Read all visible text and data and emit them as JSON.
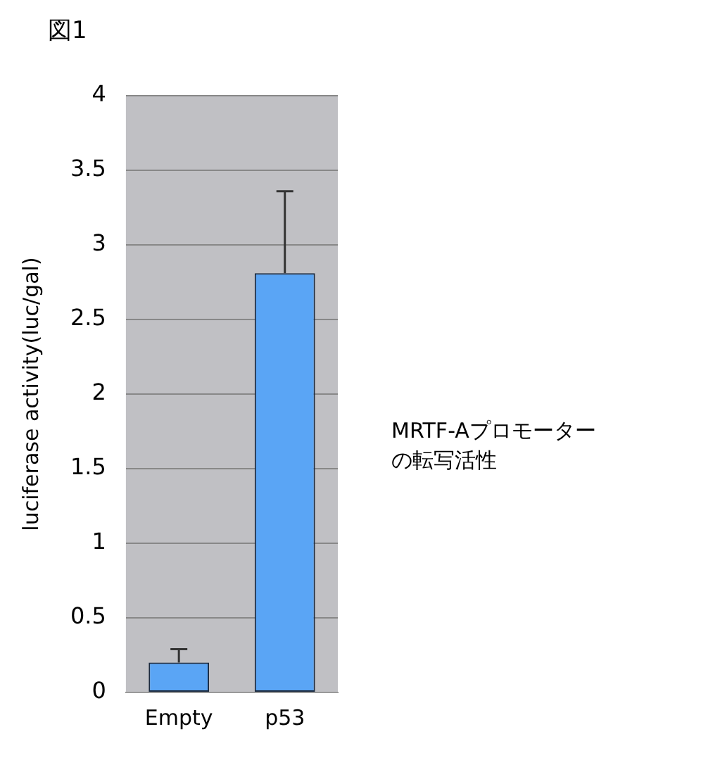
{
  "chart_data": {
    "type": "bar",
    "title": "図1",
    "ylabel": "luciferase activity(luc/gal)",
    "annotations": [
      "MRTF-Aプロモーターの転写活性"
    ],
    "categories": [
      "Empty",
      "p53"
    ],
    "values": [
      0.2,
      2.81
    ],
    "errors": [
      [
        0.2,
        0.29
      ],
      [
        2.81,
        3.36
      ]
    ],
    "color": "#5aa5f5",
    "ylim": [
      0,
      4
    ],
    "yticks": [
      0,
      0.5,
      1,
      1.5,
      2,
      2.5,
      3,
      3.5,
      4
    ],
    "grid": "y",
    "legend": false
  }
}
